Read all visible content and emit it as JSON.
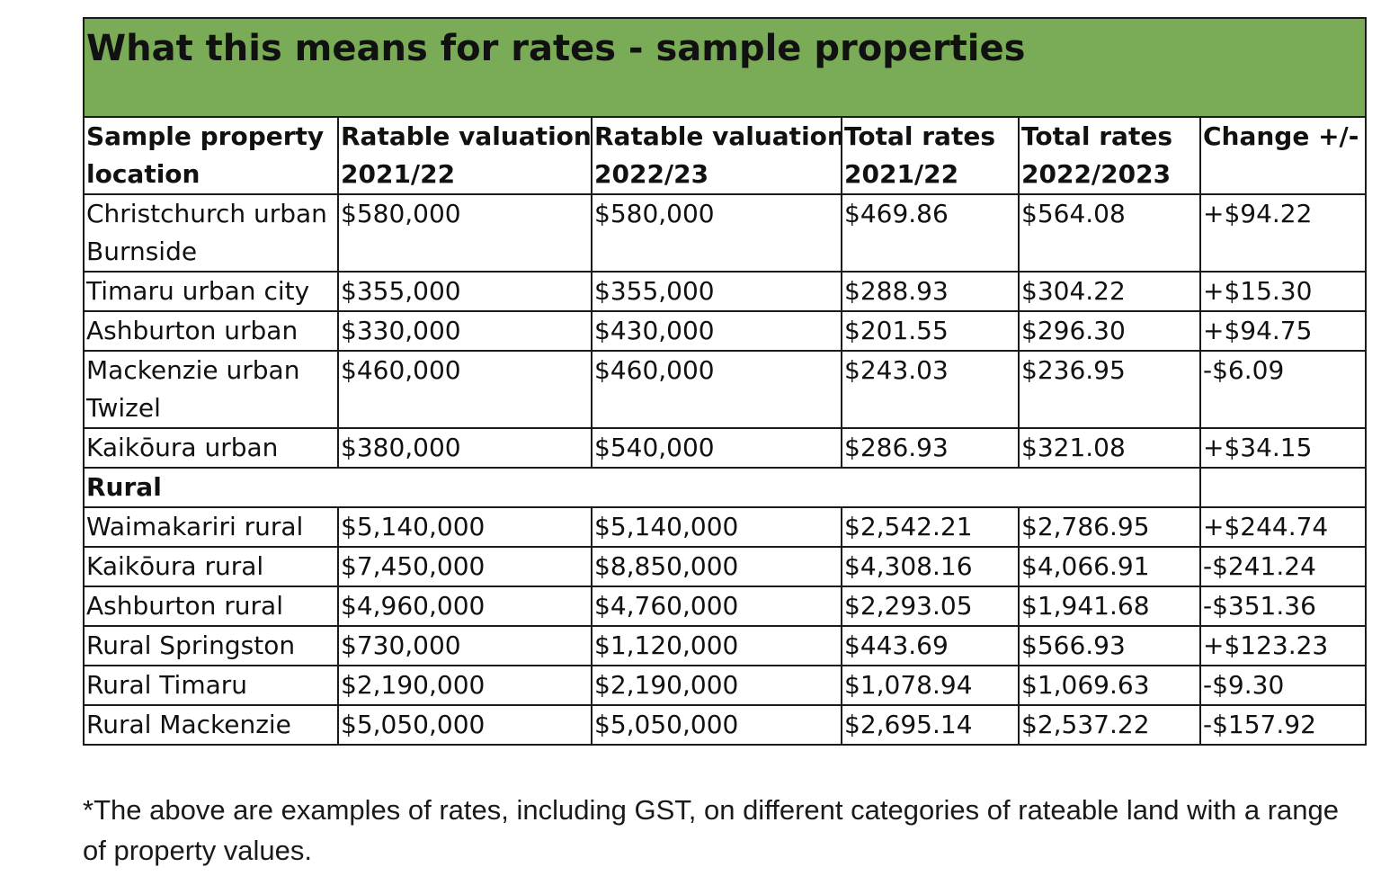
{
  "title": "What this means for rates - sample properties",
  "headers": [
    [
      "Sample property",
      "location"
    ],
    [
      "Ratable valuation",
      "2021/22"
    ],
    [
      "Ratable valuation",
      "2022/23"
    ],
    [
      "Total rates",
      "2021/22"
    ],
    [
      "Total rates",
      "2022/2023"
    ],
    [
      "Change +/-",
      ""
    ]
  ],
  "rows": [
    {
      "location": [
        "Christchurch urban",
        "Burnside"
      ],
      "val_2122": "$580,000",
      "val_2223": "$580,000",
      "rates_2122": "$469.86",
      "rates_2223": "$564.08",
      "change": "+$94.22"
    },
    {
      "location": [
        "Timaru urban city"
      ],
      "val_2122": "$355,000",
      "val_2223": "$355,000",
      "rates_2122": "$288.93",
      "rates_2223": "$304.22",
      "change": "+$15.30"
    },
    {
      "location": [
        "Ashburton urban"
      ],
      "val_2122": "$330,000",
      "val_2223": "$430,000",
      "rates_2122": "$201.55",
      "rates_2223": "$296.30",
      "change": "+$94.75"
    },
    {
      "location": [
        "Mackenzie urban",
        "Twizel"
      ],
      "val_2122": "$460,000",
      "val_2223": "$460,000",
      "rates_2122": "$243.03",
      "rates_2223": "$236.95",
      "change": "-$6.09"
    },
    {
      "location": [
        "Kaikōura urban"
      ],
      "val_2122": "$380,000",
      "val_2223": "$540,000",
      "rates_2122": "$286.93",
      "rates_2223": "$321.08",
      "change": "+$34.15"
    }
  ],
  "section_label": "Rural",
  "rural_rows": [
    {
      "location": [
        "Waimakariri rural"
      ],
      "val_2122": "$5,140,000",
      "val_2223": "$5,140,000",
      "rates_2122": "$2,542.21",
      "rates_2223": "$2,786.95",
      "change": "+$244.74"
    },
    {
      "location": [
        "Kaikōura rural"
      ],
      "val_2122": "$7,450,000",
      "val_2223": "$8,850,000",
      "rates_2122": "$4,308.16",
      "rates_2223": "$4,066.91",
      "change": "-$241.24"
    },
    {
      "location": [
        "Ashburton rural"
      ],
      "val_2122": "$4,960,000",
      "val_2223": "$4,760,000",
      "rates_2122": "$2,293.05",
      "rates_2223": "$1,941.68",
      "change": "-$351.36"
    },
    {
      "location": [
        "Rural Springston"
      ],
      "val_2122": "$730,000",
      "val_2223": "$1,120,000",
      "rates_2122": "$443.69",
      "rates_2223": "$566.93",
      "change": "+$123.23"
    },
    {
      "location": [
        "Rural Timaru"
      ],
      "val_2122": "$2,190,000",
      "val_2223": "$2,190,000",
      "rates_2122": "$1,078.94",
      "rates_2223": "$1,069.63",
      "change": "-$9.30"
    },
    {
      "location": [
        "Rural Mackenzie"
      ],
      "val_2122": "$5,050,000",
      "val_2223": "$5,050,000",
      "rates_2122": "$2,695.14",
      "rates_2223": "$2,537.22",
      "change": "-$157.92"
    }
  ],
  "footnote": "*The above are examples of rates, including GST, on different categories of rateable land with a range of property values.",
  "colors": {
    "title_background": "#7aab56",
    "border": "#1a1a1a",
    "text": "#111111"
  }
}
